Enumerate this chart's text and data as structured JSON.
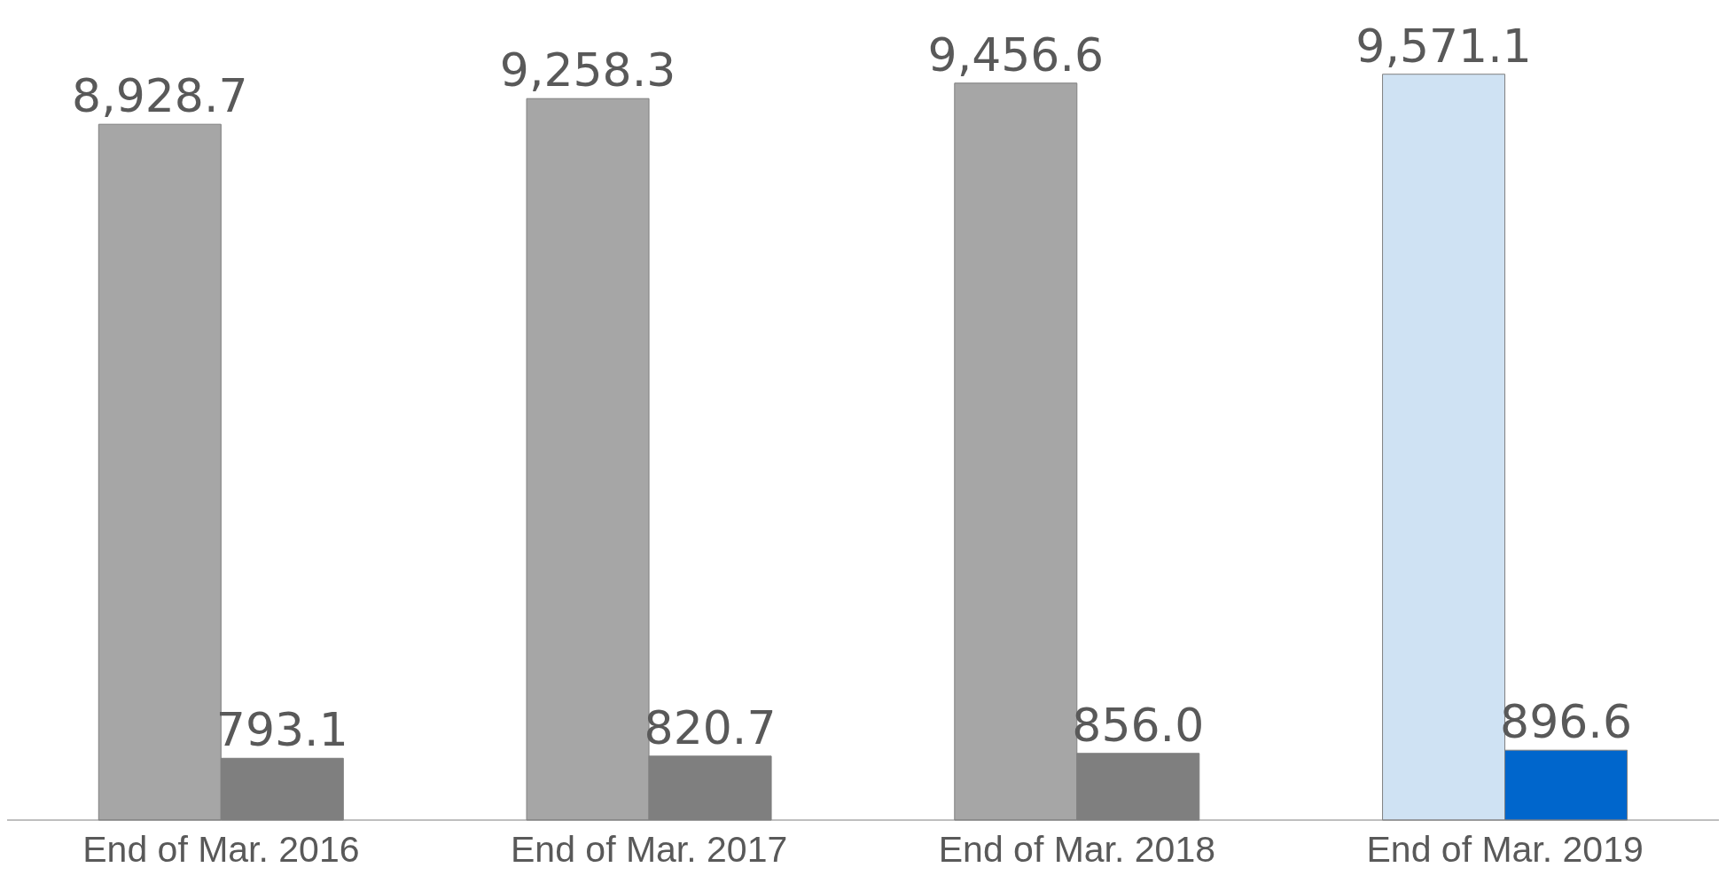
{
  "chart_data": {
    "type": "bar",
    "categories": [
      "End of Mar. 2016",
      "End of Mar. 2017",
      "End of Mar. 2018",
      "End of Mar. 2019"
    ],
    "series": [
      {
        "values": [
          8928.7,
          9258.3,
          9456.6,
          9571.1
        ],
        "value_labels": [
          "8,928.7",
          "9,258.3",
          "9,456.6",
          "9,571.1"
        ],
        "colors": [
          "#a6a6a6",
          "#a6a6a6",
          "#a6a6a6",
          "#cfe2f3"
        ]
      },
      {
        "values": [
          793.1,
          820.7,
          856.0,
          896.6
        ],
        "value_labels": [
          "793.1",
          "820.7",
          "856.0",
          "896.6"
        ],
        "colors": [
          "#7f7f7f",
          "#7f7f7f",
          "#7f7f7f",
          "#0066cc"
        ]
      }
    ],
    "grid": false,
    "legend": false
  }
}
